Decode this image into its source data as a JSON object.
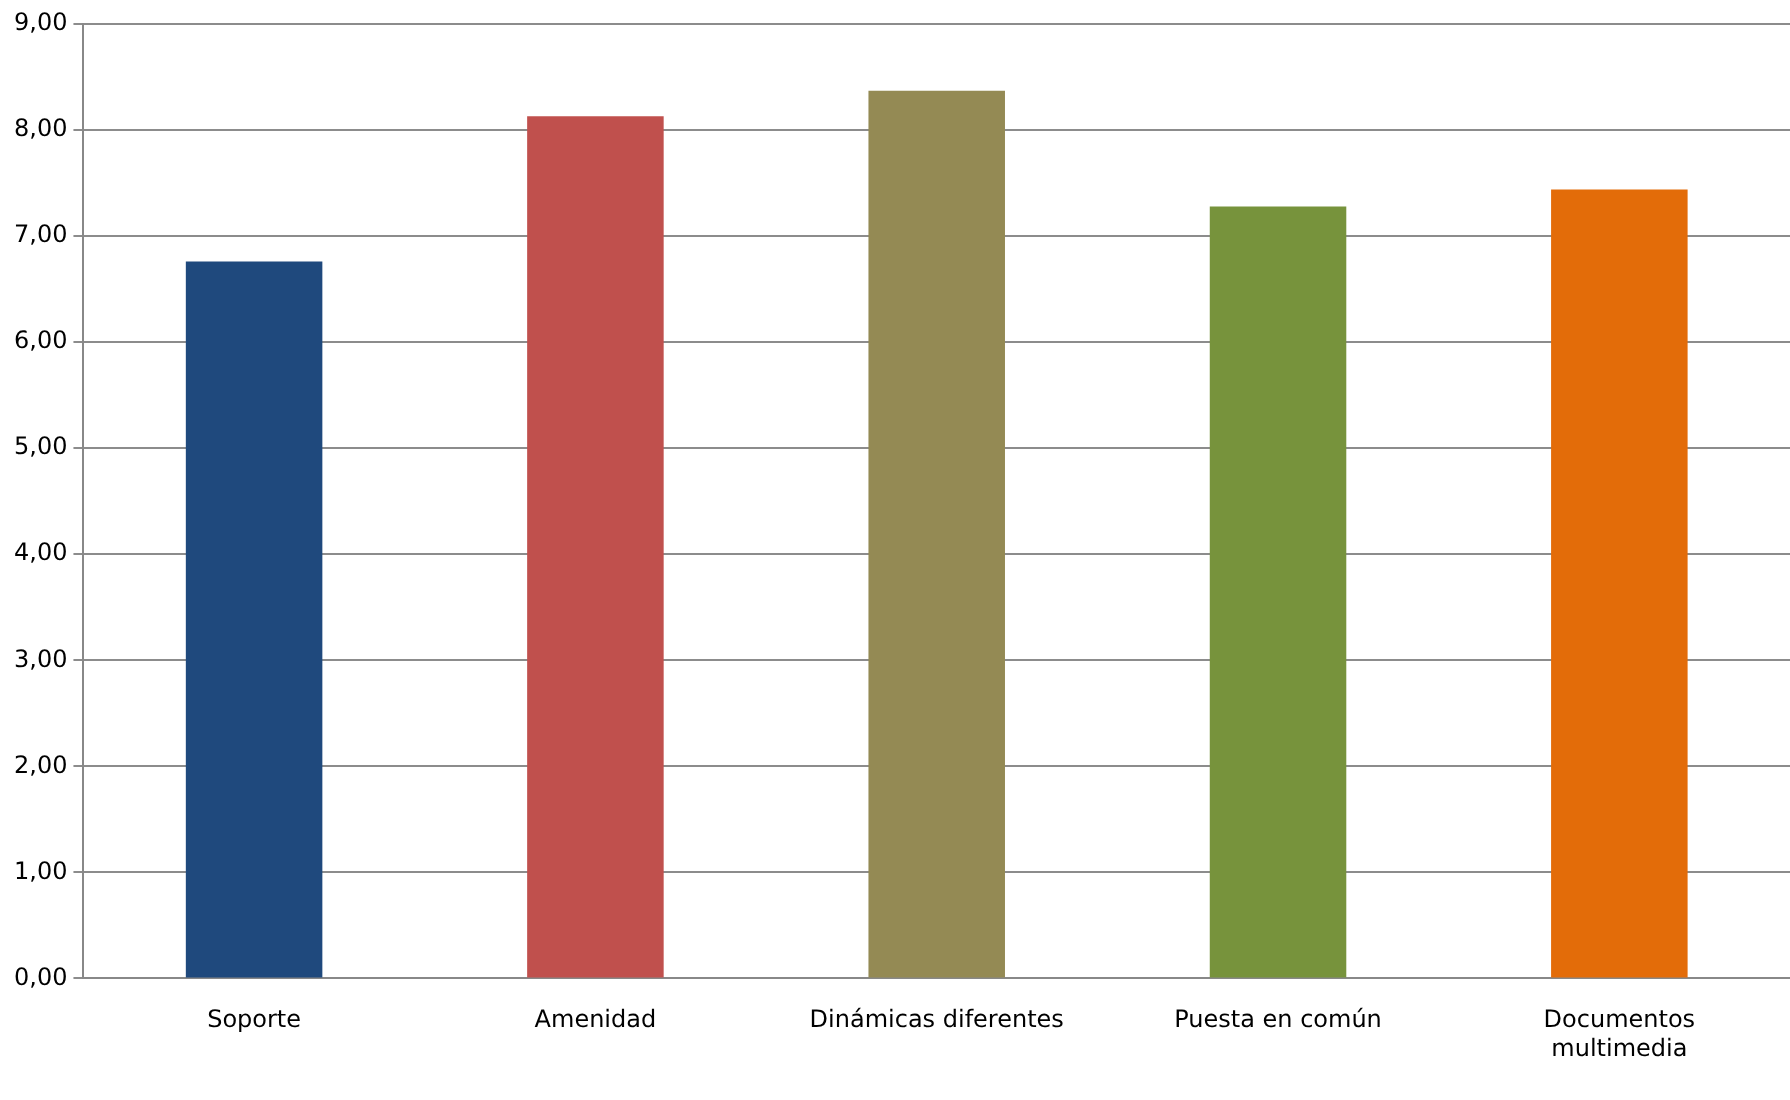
{
  "chart_data": {
    "type": "bar",
    "categories": [
      "Soporte",
      "Amenidad",
      "Dinámicas diferentes",
      "Puesta en común",
      "Documentos multimedia"
    ],
    "values": [
      6.76,
      8.13,
      8.37,
      7.28,
      7.44
    ],
    "colors": [
      "#1f497d",
      "#c0504d",
      "#948a54",
      "#77933c",
      "#e36c09"
    ],
    "ylim": [
      0,
      9
    ],
    "yticks": [
      {
        "value": 0,
        "label": "0,00"
      },
      {
        "value": 1,
        "label": "1,00"
      },
      {
        "value": 2,
        "label": "2,00"
      },
      {
        "value": 3,
        "label": "3,00"
      },
      {
        "value": 4,
        "label": "4,00"
      },
      {
        "value": 5,
        "label": "5,00"
      },
      {
        "value": 6,
        "label": "6,00"
      },
      {
        "value": 7,
        "label": "7,00"
      },
      {
        "value": 8,
        "label": "8,00"
      },
      {
        "value": 9,
        "label": "9,00"
      }
    ],
    "grid": "y",
    "legend": false
  }
}
